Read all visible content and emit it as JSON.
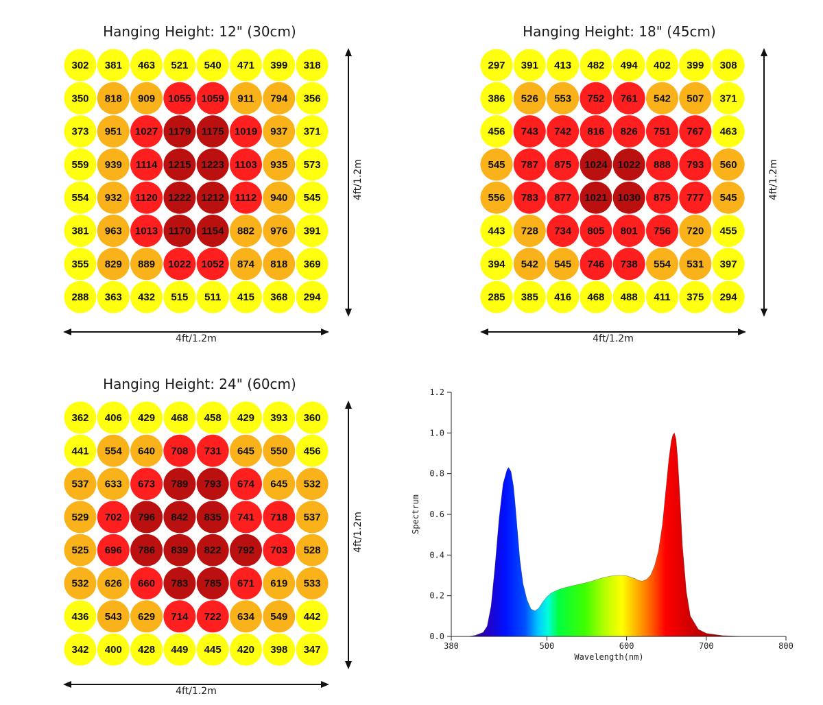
{
  "chart_data": [
    {
      "type": "heatmap",
      "title": "Hanging Height: 12\" (30cm)",
      "xlabel": "4ft/1.2m",
      "ylabel": "4ft/1.2m",
      "values": [
        [
          302,
          381,
          463,
          521,
          540,
          471,
          399,
          318
        ],
        [
          350,
          818,
          909,
          1055,
          1059,
          911,
          794,
          356
        ],
        [
          373,
          951,
          1027,
          1179,
          1175,
          1019,
          937,
          371
        ],
        [
          559,
          939,
          1114,
          1215,
          1223,
          1103,
          935,
          573
        ],
        [
          554,
          932,
          1120,
          1222,
          1212,
          1112,
          940,
          545
        ],
        [
          381,
          963,
          1013,
          1170,
          1154,
          882,
          976,
          391
        ],
        [
          355,
          829,
          889,
          1022,
          1052,
          874,
          818,
          369
        ],
        [
          288,
          363,
          432,
          515,
          511,
          415,
          368,
          294
        ]
      ]
    },
    {
      "type": "heatmap",
      "title": "Hanging Height: 18\" (45cm)",
      "xlabel": "4ft/1.2m",
      "ylabel": "4ft/1.2m",
      "values": [
        [
          297,
          391,
          413,
          482,
          494,
          402,
          399,
          308
        ],
        [
          386,
          526,
          553,
          752,
          761,
          542,
          507,
          371
        ],
        [
          456,
          743,
          742,
          816,
          826,
          751,
          767,
          463
        ],
        [
          545,
          787,
          875,
          1024,
          1022,
          888,
          793,
          560
        ],
        [
          556,
          783,
          877,
          1021,
          1030,
          875,
          777,
          545
        ],
        [
          443,
          728,
          734,
          805,
          801,
          756,
          720,
          455
        ],
        [
          394,
          542,
          545,
          746,
          738,
          554,
          531,
          397
        ],
        [
          285,
          385,
          416,
          468,
          488,
          411,
          375,
          294
        ]
      ]
    },
    {
      "type": "heatmap",
      "title": "Hanging Height: 24\" (60cm)",
      "xlabel": "4ft/1.2m",
      "ylabel": "4ft/1.2m",
      "values": [
        [
          362,
          406,
          429,
          468,
          458,
          429,
          393,
          360
        ],
        [
          441,
          554,
          640,
          708,
          731,
          645,
          550,
          456
        ],
        [
          537,
          633,
          673,
          789,
          793,
          674,
          645,
          532
        ],
        [
          529,
          702,
          796,
          842,
          835,
          741,
          718,
          537
        ],
        [
          525,
          696,
          786,
          839,
          822,
          792,
          703,
          528
        ],
        [
          532,
          626,
          660,
          783,
          785,
          671,
          619,
          533
        ],
        [
          436,
          543,
          629,
          714,
          722,
          634,
          549,
          442
        ],
        [
          342,
          400,
          428,
          449,
          445,
          420,
          398,
          347
        ]
      ]
    },
    {
      "type": "area",
      "xlabel": "Wavelength(nm)",
      "ylabel": "Spectrum",
      "xlim": [
        380,
        800
      ],
      "ylim": [
        0,
        1.2
      ],
      "x_ticks": [
        380,
        500,
        600,
        700,
        800
      ],
      "y_ticks": [
        "0.0",
        "0.2",
        "0.4",
        "0.6",
        "0.8",
        "1.0",
        "1.2"
      ],
      "x": [
        380,
        400,
        410,
        420,
        425,
        430,
        435,
        440,
        445,
        450,
        452,
        455,
        458,
        460,
        463,
        466,
        470,
        475,
        480,
        485,
        490,
        495,
        500,
        505,
        510,
        515,
        520,
        530,
        540,
        550,
        560,
        570,
        580,
        590,
        600,
        610,
        615,
        620,
        625,
        630,
        635,
        640,
        645,
        650,
        653,
        656,
        658,
        660,
        662,
        664,
        667,
        670,
        675,
        680,
        690,
        700,
        720,
        750,
        800
      ],
      "y": [
        0.0,
        0.0,
        0.005,
        0.02,
        0.05,
        0.15,
        0.35,
        0.58,
        0.75,
        0.82,
        0.83,
        0.81,
        0.74,
        0.66,
        0.52,
        0.38,
        0.26,
        0.18,
        0.135,
        0.125,
        0.14,
        0.17,
        0.195,
        0.212,
        0.222,
        0.23,
        0.237,
        0.247,
        0.256,
        0.265,
        0.276,
        0.288,
        0.297,
        0.3,
        0.298,
        0.285,
        0.275,
        0.272,
        0.28,
        0.3,
        0.345,
        0.42,
        0.55,
        0.75,
        0.87,
        0.96,
        0.99,
        1.0,
        0.97,
        0.88,
        0.68,
        0.45,
        0.22,
        0.1,
        0.035,
        0.015,
        0.004,
        0.0,
        0.0
      ]
    }
  ]
}
